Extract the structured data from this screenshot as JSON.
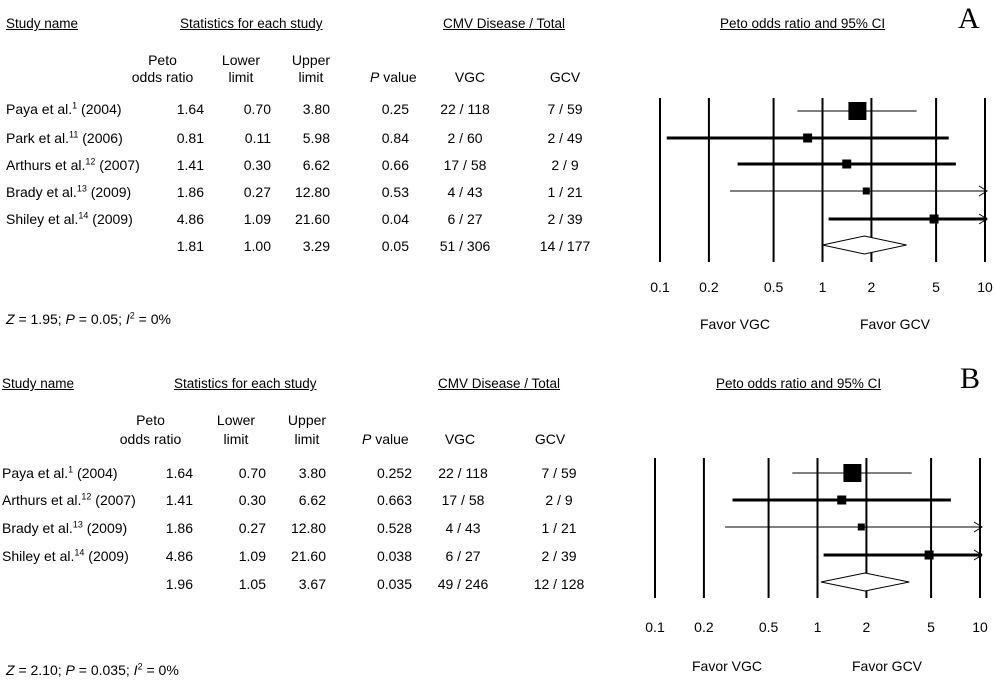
{
  "panels": [
    {
      "letter": "A",
      "headers": {
        "study_name": "Study name",
        "statistics": "Statistics for each study",
        "cmv": "CMV Disease / Total",
        "plot": "Peto odds ratio and 95% CI"
      },
      "columns": {
        "peto_1": "Peto",
        "peto_2": "odds ratio",
        "lower_1": "Lower",
        "lower_2": "limit",
        "upper_1": "Upper",
        "upper_2": "limit",
        "p_italic": "P",
        "p_rest": " value",
        "vgc": "VGC",
        "gcv": "GCV"
      },
      "rows": [
        {
          "name": "Paya et al.",
          "ref": "1",
          "year": " (2004)",
          "or": "1.64",
          "lower": "0.70",
          "upper": "3.80",
          "p": "0.25",
          "vgc": "22 / 118",
          "gcv": "7 / 59"
        },
        {
          "name": "Park et al.",
          "ref": "11",
          "year": " (2006)",
          "or": "0.81",
          "lower": "0.11",
          "upper": "5.98",
          "p": "0.84",
          "vgc": "2 / 60",
          "gcv": "2 / 49"
        },
        {
          "name": "Arthurs et al.",
          "ref": "12",
          "year": " (2007)",
          "or": "1.41",
          "lower": "0.30",
          "upper": "6.62",
          "p": "0.66",
          "vgc": "17 / 58",
          "gcv": "2 / 9"
        },
        {
          "name": "Brady et al.",
          "ref": "13",
          "year": " (2009)",
          "or": "1.86",
          "lower": "0.27",
          "upper": "12.80",
          "p": "0.53",
          "vgc": "4 / 43",
          "gcv": "1 / 21"
        },
        {
          "name": "Shiley et al.",
          "ref": "14",
          "year": " (2009)",
          "or": "4.86",
          "lower": "1.09",
          "upper": "21.60",
          "p": "0.04",
          "vgc": "6 / 27",
          "gcv": "2 / 39"
        }
      ],
      "summary": {
        "or": "1.81",
        "lower": "1.00",
        "upper": "3.29",
        "p": "0.05",
        "vgc": "51 / 306",
        "gcv": "14 / 177"
      },
      "stats": {
        "z_label": "Z",
        "z_value": " = 1.95; ",
        "p_label": "P",
        "p_value": " = 0.05; ",
        "i_label": "I",
        "i_sup": "2",
        "i_value": " = 0%"
      },
      "favor_left": "Favor VGC",
      "favor_right": "Favor GCV"
    },
    {
      "letter": "B",
      "headers": {
        "study_name": "Study name",
        "statistics": "Statistics for each study",
        "cmv": "CMV Disease / Total",
        "plot": "Peto odds ratio and 95% CI"
      },
      "columns": {
        "peto_1": "Peto",
        "peto_2": "odds ratio",
        "lower_1": "Lower",
        "lower_2": "limit",
        "upper_1": "Upper",
        "upper_2": "limit",
        "p_italic": "P",
        "p_rest": " value",
        "vgc": "VGC",
        "gcv": "GCV"
      },
      "rows": [
        {
          "name": "Paya et al.",
          "ref": "1",
          "year": " (2004)",
          "or": "1.64",
          "lower": "0.70",
          "upper": "3.80",
          "p": "0.252",
          "vgc": "22 / 118",
          "gcv": "7 / 59"
        },
        {
          "name": "Arthurs et al.",
          "ref": "12",
          "year": " (2007)",
          "or": "1.41",
          "lower": "0.30",
          "upper": "6.62",
          "p": "0.663",
          "vgc": "17 / 58",
          "gcv": "2 / 9"
        },
        {
          "name": "Brady et al.",
          "ref": "13",
          "year": " (2009)",
          "or": "1.86",
          "lower": "0.27",
          "upper": "12.80",
          "p": "0.528",
          "vgc": "4 / 43",
          "gcv": "1 / 21"
        },
        {
          "name": "Shiley et al.",
          "ref": "14",
          "year": " (2009)",
          "or": "4.86",
          "lower": "1.09",
          "upper": "21.60",
          "p": "0.038",
          "vgc": "6 / 27",
          "gcv": "2 / 39"
        }
      ],
      "summary": {
        "or": "1.96",
        "lower": "1.05",
        "upper": "3.67",
        "p": "0.035",
        "vgc": "49 / 246",
        "gcv": "12 / 128"
      },
      "stats": {
        "z_label": "Z",
        "z_value": " = 2.10; ",
        "p_label": "P",
        "p_value": " = 0.035; ",
        "i_label": "I",
        "i_sup": "2",
        "i_value": " = 0%"
      },
      "favor_left": "Favor VGC",
      "favor_right": "Favor GCV"
    }
  ],
  "chart_data": [
    {
      "type": "forest",
      "title": "Peto odds ratio and 95% CI",
      "x_scale": "log",
      "xlim": [
        0.1,
        10
      ],
      "x_ticks": [
        "0.1",
        "0.2",
        "0.5",
        "1",
        "2",
        "5",
        "10"
      ],
      "reference_lines": [
        0.1,
        0.2,
        0.5,
        1,
        2,
        5,
        10
      ],
      "studies": [
        {
          "name": "Paya et al. (2004)",
          "or": 1.64,
          "lower": 0.7,
          "upper": 3.8,
          "weight": "large"
        },
        {
          "name": "Park et al. (2006)",
          "or": 0.81,
          "lower": 0.11,
          "upper": 5.98,
          "weight": "small"
        },
        {
          "name": "Arthurs et al. (2007)",
          "or": 1.41,
          "lower": 0.3,
          "upper": 6.62,
          "weight": "small"
        },
        {
          "name": "Brady et al. (2009)",
          "or": 1.86,
          "lower": 0.27,
          "upper": 12.8,
          "weight": "smallest"
        },
        {
          "name": "Shiley et al. (2009)",
          "or": 4.86,
          "lower": 1.09,
          "upper": 21.6,
          "weight": "small"
        }
      ],
      "pooled": {
        "or": 1.81,
        "lower": 1.0,
        "upper": 3.29
      },
      "favor_left": "Favor VGC",
      "favor_right": "Favor GCV"
    },
    {
      "type": "forest",
      "title": "Peto odds ratio and 95% CI",
      "x_scale": "log",
      "xlim": [
        0.1,
        10
      ],
      "x_ticks": [
        "0.1",
        "0.2",
        "0.5",
        "1",
        "2",
        "5",
        "10"
      ],
      "reference_lines": [
        0.1,
        0.2,
        0.5,
        1,
        2,
        5,
        10
      ],
      "studies": [
        {
          "name": "Paya et al. (2004)",
          "or": 1.64,
          "lower": 0.7,
          "upper": 3.8,
          "weight": "large"
        },
        {
          "name": "Arthurs et al. (2007)",
          "or": 1.41,
          "lower": 0.3,
          "upper": 6.62,
          "weight": "small"
        },
        {
          "name": "Brady et al. (2009)",
          "or": 1.86,
          "lower": 0.27,
          "upper": 12.8,
          "weight": "smallest"
        },
        {
          "name": "Shiley et al. (2009)",
          "or": 4.86,
          "lower": 1.09,
          "upper": 21.6,
          "weight": "small"
        }
      ],
      "pooled": {
        "or": 1.96,
        "lower": 1.05,
        "upper": 3.67
      },
      "favor_left": "Favor VGC",
      "favor_right": "Favor GCV"
    }
  ]
}
